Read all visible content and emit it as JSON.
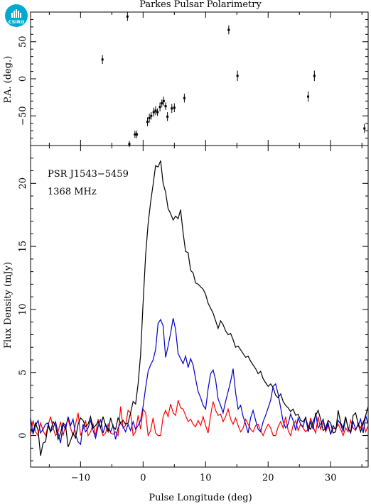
{
  "logo": {
    "text": "CSIRO",
    "color": "#00a9ce"
  },
  "title": "Parkes Pulsar Polarimetry",
  "chart_data": [
    {
      "type": "scatter",
      "name": "position-angle",
      "ylabel": "P.A. (deg.)",
      "xlim": [
        -18,
        36
      ],
      "ylim": [
        -90,
        90
      ],
      "xticks": [
        -10,
        0,
        10,
        20,
        30
      ],
      "yticks": [
        -50,
        0,
        50
      ],
      "points": [
        {
          "x": -6.5,
          "y": 26,
          "err": 6
        },
        {
          "x": -2.5,
          "y": 84,
          "err": 6
        },
        {
          "x": -2.2,
          "y": -88,
          "err": 4
        },
        {
          "x": -1.3,
          "y": -75,
          "err": 5
        },
        {
          "x": -1.0,
          "y": -75,
          "err": 5
        },
        {
          "x": 0.7,
          "y": -58,
          "err": 6
        },
        {
          "x": 1.0,
          "y": -53,
          "err": 6
        },
        {
          "x": 1.3,
          "y": -50,
          "err": 5
        },
        {
          "x": 1.7,
          "y": -45,
          "err": 6
        },
        {
          "x": 2.0,
          "y": -43,
          "err": 6
        },
        {
          "x": 2.3,
          "y": -45,
          "err": 5
        },
        {
          "x": 2.7,
          "y": -38,
          "err": 6
        },
        {
          "x": 3.0,
          "y": -33,
          "err": 5
        },
        {
          "x": 3.3,
          "y": -30,
          "err": 6
        },
        {
          "x": 3.6,
          "y": -37,
          "err": 5
        },
        {
          "x": 3.9,
          "y": -51,
          "err": 6
        },
        {
          "x": 4.6,
          "y": -40,
          "err": 6
        },
        {
          "x": 5.0,
          "y": -39,
          "err": 6
        },
        {
          "x": 6.6,
          "y": -26,
          "err": 6
        },
        {
          "x": 13.7,
          "y": 66,
          "err": 6
        },
        {
          "x": 15.1,
          "y": 4,
          "err": 7
        },
        {
          "x": 26.4,
          "y": -24,
          "err": 7
        },
        {
          "x": 27.4,
          "y": 4,
          "err": 7
        },
        {
          "x": 35.4,
          "y": -67,
          "err": 6
        }
      ]
    },
    {
      "type": "line",
      "name": "flux-profile",
      "xlabel": "Pulse Longitude (deg)",
      "ylabel": "Flux Density (mJy)",
      "xlim": [
        -18,
        36
      ],
      "ylim": [
        -2.5,
        23
      ],
      "xticks": [
        -10,
        0,
        10,
        20,
        30
      ],
      "yticks": [
        0,
        5,
        10,
        15,
        20
      ],
      "annotations": [
        "PSR J1543−5459",
        "1368 MHz"
      ],
      "colors": {
        "total": "#000000",
        "linear": "#0000cc",
        "circular": "#ff0000"
      },
      "series": [
        {
          "key": "total",
          "x0": -18,
          "dx": 0.4,
          "values": [
            0.5,
            0.3,
            1.0,
            0.4,
            -1.6,
            -0.6,
            -0.5,
            0.8,
            0.3,
            1.1,
            0.8,
            -0.3,
            0.2,
            1.0,
            0.8,
            -0.9,
            -0.4,
            0.2,
            -0.2,
            0.9,
            1.4,
            1.2,
            0.7,
            0.9,
            1.5,
            0.6,
            0.8,
            1.1,
            0.6,
            1.5,
            0.8,
            0.3,
            1.4,
            0.7,
            0.5,
            1.4,
            1.0,
            1.2,
            0.9,
            1.0,
            1.8,
            2.7,
            2.5,
            4.1,
            6.4,
            10.5,
            14.3,
            16.8,
            18.5,
            19.9,
            21.4,
            21.3,
            21.8,
            20.0,
            19.3,
            18.0,
            17.6,
            17.1,
            17.4,
            17.2,
            17.9,
            16.1,
            14.6,
            14.5,
            13.1,
            12.9,
            12.1,
            12.0,
            11.8,
            11.6,
            11.2,
            10.5,
            10.1,
            9.7,
            9.1,
            8.5,
            9.1,
            8.8,
            8.3,
            8.0,
            8.1,
            7.6,
            7.0,
            7.1,
            6.8,
            6.5,
            6.2,
            6.3,
            5.9,
            5.6,
            5.3,
            4.9,
            5.1,
            4.5,
            4.2,
            3.9,
            4.1,
            3.8,
            3.2,
            3.0,
            3.3,
            2.7,
            2.4,
            2.2,
            1.9,
            2.1,
            1.6,
            1.7,
            1.2,
            1.1,
            1.4,
            0.7,
            0.5,
            1.1,
            1.6,
            2.0,
            1.3,
            0.4,
            0.6,
            1.2,
            1.0,
            0.2,
            0.3,
            2.0,
            1.0,
            0.6,
            1.5,
            0.5,
            0.3,
            1.6,
            1.8,
            0.9,
            0.3,
            1.0,
            1.6,
            2.3,
            0.4,
            1.2
          ]
        },
        {
          "key": "linear",
          "x0": -18,
          "dx": 0.4,
          "values": [
            1.4,
            0.1,
            0.8,
            1.2,
            0.2,
            0.5,
            0.9,
            1.0,
            0.3,
            0.6,
            1.1,
            0.2,
            -0.6,
            0.9,
            0.5,
            1.5,
            0.8,
            1.3,
            0.1,
            -0.5,
            -0.7,
            0.9,
            0.3,
            0.6,
            1.2,
            0.4,
            -0.2,
            0.7,
            1.3,
            0.2,
            0.9,
            0.5,
            0.3,
            0.8,
            -0.3,
            0.6,
            1.0,
            0.7,
            0.3,
            0.9,
            0.4,
            1.1,
            0.5,
            0.8,
            1.2,
            2.3,
            3.8,
            5.1,
            5.6,
            6.0,
            6.8,
            8.9,
            9.2,
            8.7,
            6.2,
            7.1,
            8.1,
            9.3,
            8.4,
            6.5,
            6.1,
            5.7,
            6.3,
            5.4,
            6.1,
            5.6,
            4.5,
            3.5,
            3.0,
            2.4,
            2.1,
            3.7,
            4.9,
            5.2,
            4.4,
            2.9,
            2.4,
            1.8,
            2.7,
            3.5,
            4.3,
            5.3,
            3.4,
            2.1,
            2.4,
            1.5,
            0.9,
            0.2,
            1.4,
            2.0,
            1.2,
            0.5,
            0.3,
            1.1,
            1.6,
            2.2,
            2.8,
            3.9,
            4.1,
            3.3,
            2.2,
            1.1,
            0.6,
            0.9,
            1.7,
            1.2,
            0.4,
            1.4,
            0.9,
            0.7,
            1.5,
            0.3,
            1.1,
            0.5,
            1.8,
            0.6,
            0.9,
            1.3,
            0.4,
            1.0,
            0.1,
            0.8,
            0.5,
            1.2,
            0.9,
            0.3,
            1.4,
            0.6,
            0.2,
            1.1,
            0.5,
            0.8,
            1.3,
            0.2,
            1.6,
            0.9
          ]
        },
        {
          "key": "circular",
          "x0": -18,
          "dx": 0.4,
          "values": [
            0.0,
            1.2,
            0.3,
            0.0,
            1.0,
            0.4,
            0.0,
            0.8,
            1.5,
            0.6,
            0.0,
            0.3,
            1.1,
            0.0,
            0.8,
            1.3,
            0.6,
            0.0,
            0.9,
            1.8,
            0.0,
            0.5,
            1.2,
            0.0,
            0.3,
            0.9,
            0.0,
            1.3,
            0.6,
            0.0,
            0.2,
            0.9,
            0.2,
            0.1,
            0.3,
            0.0,
            2.3,
            0.6,
            0.8,
            2.0,
            1.8,
            0.0,
            0.3,
            1.6,
            0.5,
            2.1,
            1.8,
            0.0,
            0.4,
            1.4,
            0.2,
            0.0,
            0.0,
            1.5,
            2.0,
            1.5,
            2.5,
            1.8,
            1.6,
            2.8,
            2.2,
            2.1,
            1.6,
            1.1,
            1.3,
            0.9,
            0.7,
            1.2,
            0.8,
            1.5,
            0.8,
            0.2,
            1.6,
            2.7,
            2.0,
            1.6,
            1.7,
            1.1,
            1.5,
            2.1,
            1.3,
            0.9,
            1.4,
            0.8,
            0.3,
            0.6,
            1.3,
            0.9,
            0.5,
            0.3,
            0.8,
            0.9,
            0.4,
            0.0,
            0.5,
            0.9,
            0.6,
            0.0,
            0.0,
            0.7,
            1.1,
            0.6,
            1.5,
            0.4,
            0.0,
            0.8,
            1.2,
            0.4,
            0.9,
            0.6,
            0.3,
            0.5,
            1.4,
            0.7,
            0.2,
            1.5,
            0.5,
            1.1,
            0.3,
            0.8,
            0.1,
            0.6,
            0.5,
            0.9,
            0.5,
            0.0,
            0.6,
            0.3,
            1.2,
            0.6,
            0.4,
            1.0,
            0.6,
            1.1,
            0.3,
            0.8,
            0.2
          ]
        }
      ]
    }
  ]
}
